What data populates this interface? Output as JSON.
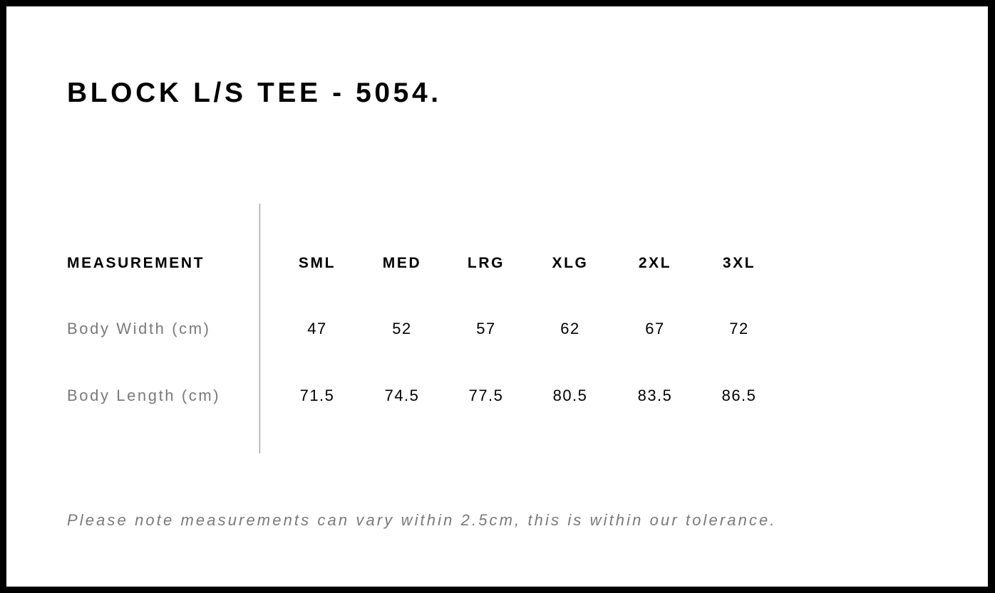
{
  "title": "BLOCK L/S TEE - 5054.",
  "table": {
    "header": "MEASUREMENT",
    "sizes": [
      "SML",
      "MED",
      "LRG",
      "XLG",
      "2XL",
      "3XL"
    ],
    "rows": [
      {
        "label": "Body Width (cm)",
        "values": [
          "47",
          "52",
          "57",
          "62",
          "67",
          "72"
        ]
      },
      {
        "label": "Body Length (cm)",
        "values": [
          "71.5",
          "74.5",
          "77.5",
          "80.5",
          "83.5",
          "86.5"
        ]
      }
    ]
  },
  "note": "Please note measurements can vary within 2.5cm, this is within our tolerance."
}
